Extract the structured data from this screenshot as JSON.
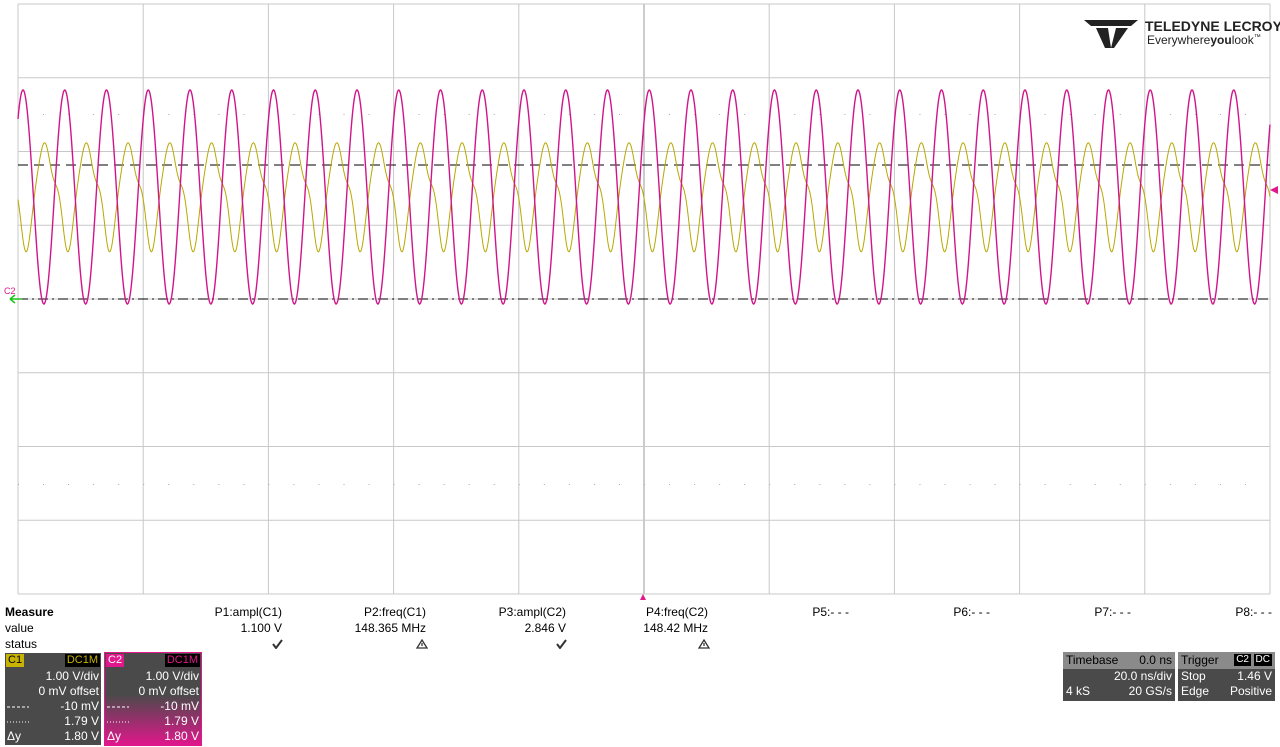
{
  "logo": {
    "brand": "TELEDYNE LECROY",
    "tagline_pre": "Everywhere",
    "tagline_bold": "you",
    "tagline_post": "look",
    "trademark": "™"
  },
  "trace_marker": "C2",
  "measure": {
    "header": "Measure",
    "row_labels": [
      "value",
      "status"
    ],
    "params": [
      {
        "name": "P1:ampl(C1)",
        "value": "1.100 V"
      },
      {
        "name": "P2:freq(C1)",
        "value": "148.365 MHz"
      },
      {
        "name": "P3:ampl(C2)",
        "value": "2.846 V"
      },
      {
        "name": "P4:freq(C2)",
        "value": "148.42 MHz"
      },
      {
        "name": "P5:- - -"
      },
      {
        "name": "P6:- - -"
      },
      {
        "name": "P7:- - -"
      },
      {
        "name": "P8:- - -"
      }
    ]
  },
  "channels": [
    {
      "label": "C1",
      "coupling": "DC1M",
      "scale": "1.00 V/div",
      "offset": "0 mV offset",
      "dashed": "-10 mV",
      "dotted": "1.79 V",
      "delta_label": "Δy",
      "delta": "1.80 V"
    },
    {
      "label": "C2",
      "coupling": "DC1M",
      "scale": "1.00 V/div",
      "offset": "0 mV offset",
      "dashed": "-10 mV",
      "dotted": "1.79 V",
      "delta_label": "Δy",
      "delta": "1.80 V"
    }
  ],
  "timebase": {
    "title": "Timebase",
    "delay": "0.0 ns",
    "scale": "20.0 ns/div",
    "samples": "4 kS",
    "rate": "20 GS/s"
  },
  "trigger": {
    "title": "Trigger",
    "source": "C2",
    "coupling": "DC",
    "mode": "Stop",
    "level": "1.46 V",
    "type": "Edge",
    "slope": "Positive"
  }
}
